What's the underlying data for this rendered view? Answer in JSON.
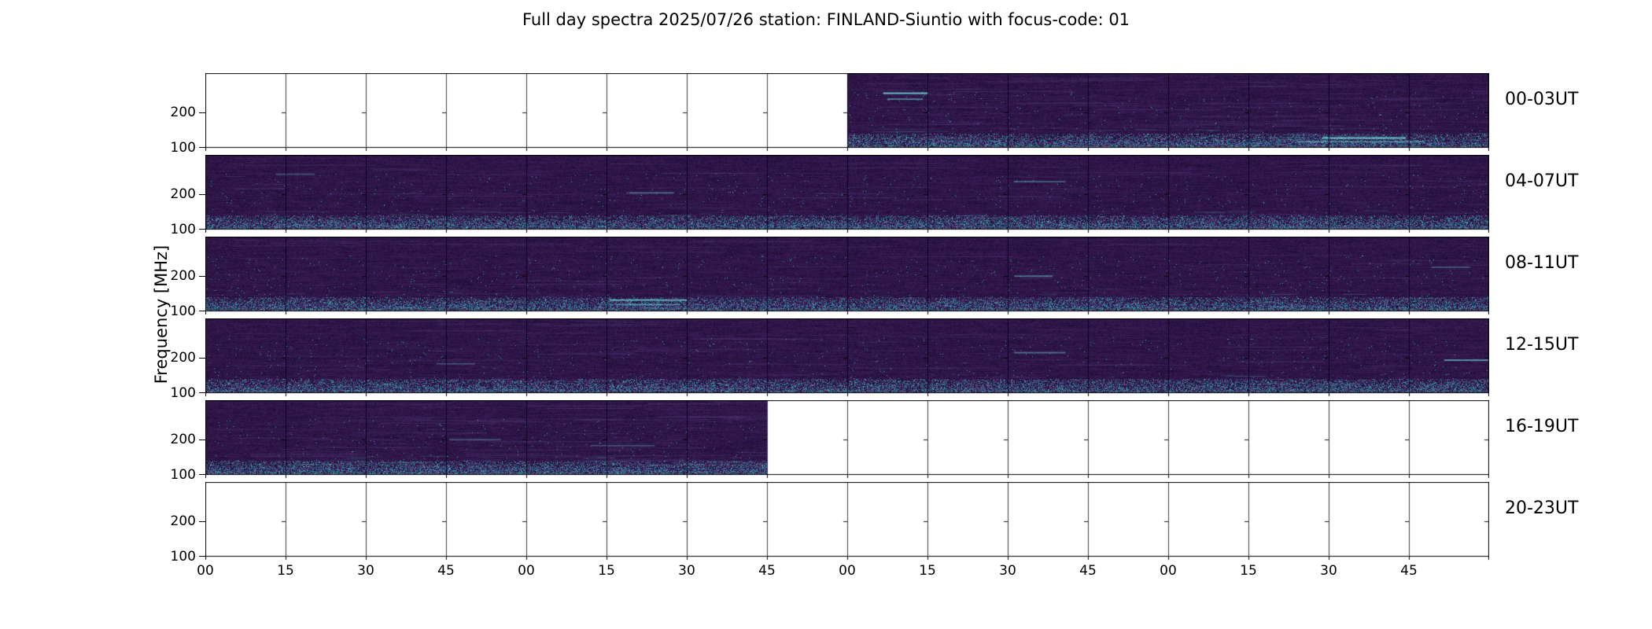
{
  "title": "Full day spectra 2025/07/26 station: FINLAND-Siuntio with focus-code: 01",
  "ylabel": "Frequency [MHz]",
  "axes": {
    "yticks": [
      "200",
      "100"
    ],
    "xticks": [
      "00",
      "15",
      "30",
      "45",
      "00",
      "15",
      "30",
      "45",
      "00",
      "15",
      "30",
      "45",
      "00",
      "15",
      "30",
      "45"
    ]
  },
  "rows": [
    {
      "label": "00-03UT",
      "filled_start": 8,
      "filled_end": 16,
      "features": [
        [
          0.528,
          0.26,
          0.035,
          0.95
        ],
        [
          0.531,
          0.34,
          0.028,
          0.55
        ],
        [
          0.87,
          0.86,
          0.065,
          0.95
        ],
        [
          0.85,
          0.91,
          0.1,
          0.5
        ]
      ]
    },
    {
      "label": "04-07UT",
      "filled_start": 0,
      "filled_end": 16,
      "features": [
        [
          0.33,
          0.5,
          0.035,
          0.45
        ],
        [
          0.63,
          0.35,
          0.04,
          0.4
        ],
        [
          0.055,
          0.25,
          0.03,
          0.3
        ]
      ]
    },
    {
      "label": "08-11UT",
      "filled_start": 0,
      "filled_end": 16,
      "features": [
        [
          0.315,
          0.84,
          0.06,
          0.8
        ],
        [
          0.32,
          0.9,
          0.05,
          0.55
        ],
        [
          0.63,
          0.52,
          0.03,
          0.5
        ],
        [
          0.955,
          0.4,
          0.03,
          0.35
        ]
      ]
    },
    {
      "label": "12-15UT",
      "filled_start": 0,
      "filled_end": 16,
      "features": [
        [
          0.63,
          0.45,
          0.04,
          0.45
        ],
        [
          0.965,
          0.55,
          0.035,
          0.7
        ],
        [
          0.18,
          0.6,
          0.03,
          0.3
        ]
      ]
    },
    {
      "label": "16-19UT",
      "filled_start": 0,
      "filled_end": 7,
      "features": [
        [
          0.19,
          0.52,
          0.04,
          0.35
        ],
        [
          0.3,
          0.6,
          0.05,
          0.3
        ]
      ]
    },
    {
      "label": "20-23UT",
      "filled_start": 0,
      "filled_end": 0,
      "features": []
    }
  ],
  "panels_per_row": 16,
  "colors": {
    "background": "#ffffff",
    "frame": "#000000",
    "base_purple": "#2e1748",
    "accent_teal": "#6ee1dc",
    "text": "#000000"
  },
  "chart_data": {
    "type": "heatmap",
    "title": "Full day spectra 2025/07/26 station: FINLAND-Siuntio with focus-code: 01",
    "ylabel": "Frequency [MHz]",
    "y_ticks_mhz": [
      200,
      100
    ],
    "x_tick_labels_minutes": [
      "00",
      "15",
      "30",
      "45",
      "00",
      "15",
      "30",
      "45",
      "00",
      "15",
      "30",
      "45",
      "00",
      "15",
      "30",
      "45"
    ],
    "row_labels": [
      "00-03UT",
      "04-07UT",
      "08-11UT",
      "12-15UT",
      "16-19UT",
      "20-23UT"
    ],
    "panels_per_row": 16,
    "panel_duration_minutes": 15,
    "data_present_panel_ranges": {
      "00-03UT": [
        8,
        16
      ],
      "04-07UT": [
        0,
        16
      ],
      "08-11UT": [
        0,
        16
      ],
      "12-15UT": [
        0,
        16
      ],
      "16-19UT": [
        0,
        7
      ],
      "20-23UT": [
        0,
        0
      ]
    },
    "colormap": "dark purple background with cyan/teal speckle intensifying near 100 MHz",
    "grid": "each row divided into 16 bordered 15-minute subpanels; empty panels rendered white"
  }
}
